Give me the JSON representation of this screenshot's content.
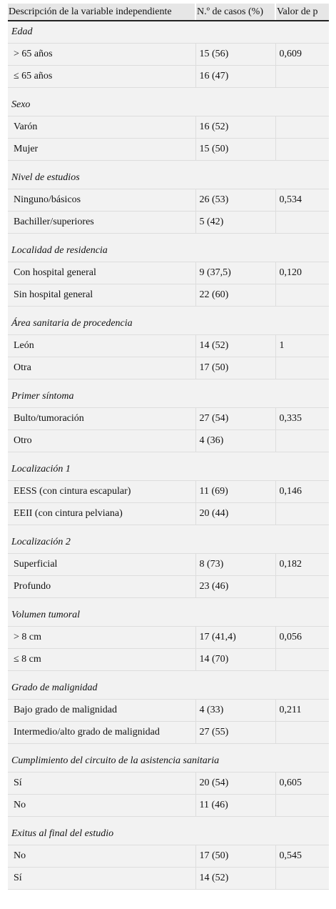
{
  "headers": [
    "Descripción de la variable independiente",
    "N.º de casos (%)",
    "Valor de p"
  ],
  "groups": [
    {
      "title": "Edad",
      "rows": [
        {
          "label": "> 65 años",
          "n": "15 (56)",
          "p": "0,609"
        },
        {
          "label": "≤ 65 años",
          "n": "16 (47)",
          "p": ""
        }
      ]
    },
    {
      "title": "Sexo",
      "rows": [
        {
          "label": "Varón",
          "n": "16 (52)",
          "p": ""
        },
        {
          "label": "Mujer",
          "n": "15 (50)",
          "p": ""
        }
      ]
    },
    {
      "title": "Nivel de estudios",
      "rows": [
        {
          "label": "Ninguno/básicos",
          "n": "26 (53)",
          "p": "0,534"
        },
        {
          "label": "Bachiller/superiores",
          "n": "5 (42)",
          "p": ""
        }
      ]
    },
    {
      "title": "Localidad de residencia",
      "rows": [
        {
          "label": "Con hospital general",
          "n": "9 (37,5)",
          "p": "0,120"
        },
        {
          "label": "Sin hospital general",
          "n": "22 (60)",
          "p": ""
        }
      ]
    },
    {
      "title": "Área sanitaria de procedencia",
      "rows": [
        {
          "label": "León",
          "n": "14 (52)",
          "p": "1"
        },
        {
          "label": "Otra",
          "n": "17 (50)",
          "p": ""
        }
      ]
    },
    {
      "title": "Primer síntoma",
      "rows": [
        {
          "label": "Bulto/tumoración",
          "n": "27 (54)",
          "p": "0,335"
        },
        {
          "label": "Otro",
          "n": "4 (36)",
          "p": ""
        }
      ]
    },
    {
      "title": "Localización 1",
      "rows": [
        {
          "label": "EESS (con cintura escapular)",
          "n": "11 (69)",
          "p": "0,146"
        },
        {
          "label": "EEII (con cintura pelviana)",
          "n": "20 (44)",
          "p": ""
        }
      ]
    },
    {
      "title": "Localización 2",
      "rows": [
        {
          "label": "Superficial",
          "n": "8 (73)",
          "p": "0,182"
        },
        {
          "label": "Profundo",
          "n": "23 (46)",
          "p": ""
        }
      ]
    },
    {
      "title": "Volumen tumoral",
      "rows": [
        {
          "label": "> 8 cm",
          "n": "17 (41,4)",
          "p": "0,056"
        },
        {
          "label": "≤ 8 cm",
          "n": "14 (70)",
          "p": ""
        }
      ]
    },
    {
      "title": "Grado de malignidad",
      "rows": [
        {
          "label": "Bajo grado de malignidad",
          "n": "4 (33)",
          "p": "0,211"
        },
        {
          "label": "Intermedio/alto grado de malignidad",
          "n": "27 (55)",
          "p": ""
        }
      ]
    },
    {
      "title": "Cumplimiento del circuito de la asistencia sanitaria",
      "rows": [
        {
          "label": "Sí",
          "n": "20 (54)",
          "p": "0,605"
        },
        {
          "label": "No",
          "n": "11 (46)",
          "p": ""
        }
      ]
    },
    {
      "title": "Exitus al final del estudio",
      "rows": [
        {
          "label": "No",
          "n": "17 (50)",
          "p": "0,545"
        },
        {
          "label": "Sí",
          "n": "14 (52)",
          "p": ""
        }
      ]
    }
  ]
}
